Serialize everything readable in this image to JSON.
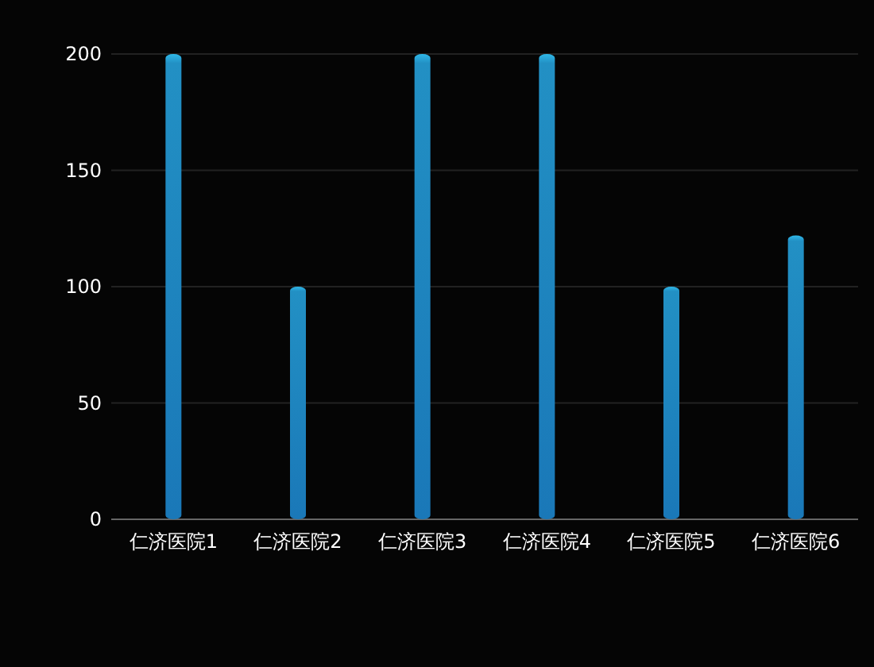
{
  "chart_data": {
    "type": "bar",
    "categories": [
      "仁济医院1",
      "仁济医院2",
      "仁济医院3",
      "仁济医院4",
      "仁济医院5",
      "仁济医院6"
    ],
    "values": [
      200,
      100,
      200,
      200,
      100,
      122
    ],
    "color": "#1a78b8",
    "ylim": [
      0,
      200
    ],
    "yticks": [
      0,
      50,
      100,
      150,
      200
    ],
    "grid": "y"
  }
}
